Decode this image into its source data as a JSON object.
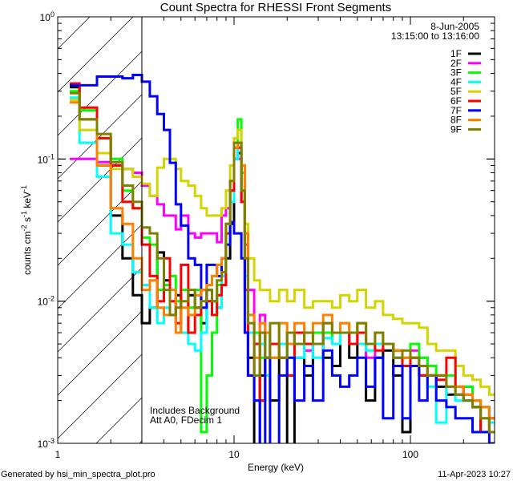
{
  "chart_data": {
    "type": "line",
    "step": true,
    "title": "Count Spectra for RHESSI Front Segments",
    "date": "8-Jun-2005",
    "time_range": "13:15:00 to 13:16:00",
    "xlabel": "Energy (keV)",
    "ylabel_parts": [
      "counts cm",
      "-2",
      " s",
      "-1",
      " keV",
      "-1"
    ],
    "xscale": "log",
    "yscale": "log",
    "xlim": [
      1,
      300
    ],
    "ylim": [
      0.001,
      1
    ],
    "x_ticks": [
      {
        "value": 1,
        "label": "1"
      },
      {
        "value": 10,
        "label": "10"
      },
      {
        "value": 100,
        "label": "100"
      }
    ],
    "y_ticks": [
      {
        "value": 1,
        "base": "10",
        "exp": "0"
      },
      {
        "value": 0.1,
        "base": "10",
        "exp": "-1"
      },
      {
        "value": 0.01,
        "base": "10",
        "exp": "-2"
      },
      {
        "value": 0.001,
        "base": "10",
        "exp": "-3"
      }
    ],
    "hatched_region_keV": [
      1,
      3
    ],
    "annotations": [
      "Includes Background",
      "Att A0, FDecim 1"
    ],
    "legend_position": "top-right",
    "bin_edges_keV": [
      1.17,
      1.33,
      1.67,
      2.0,
      2.33,
      2.67,
      3.0,
      3.33,
      3.67,
      4.0,
      4.33,
      4.67,
      5.0,
      5.5,
      6.0,
      6.5,
      7.0,
      7.5,
      8.0,
      8.5,
      9.0,
      9.5,
      10.0,
      10.5,
      11.0,
      11.5,
      12.0,
      13,
      14,
      15,
      16,
      18,
      20,
      22,
      25,
      28,
      32,
      36,
      40,
      45,
      50,
      56,
      63,
      70,
      80,
      90,
      100,
      112,
      125,
      140,
      160,
      180,
      200,
      225,
      250,
      280,
      300
    ],
    "series": [
      {
        "name": "1F",
        "color": "#000000",
        "values": [
          0.32,
          0.19,
          0.09,
          0.04,
          0.02,
          0.011,
          0.007,
          0.009,
          0.022,
          0.014,
          0.008,
          0.011,
          0.006,
          0.011,
          0.009,
          0.007,
          0.012,
          0.01,
          0.009,
          0.013,
          0.02,
          0.035,
          0.1,
          0.11,
          0.05,
          0.012,
          0.004,
          0.0009,
          0.003,
          0.006,
          0.002,
          0.005,
          0.0009,
          0.004,
          0.003,
          0.005,
          0.004,
          0.0035,
          0.006,
          0.004,
          0.005,
          0.002,
          0.004,
          0.0045,
          0.003,
          0.0012,
          0.004,
          0.003,
          0.003,
          0.0025,
          0.0022,
          0.0022,
          0.002,
          0.0018,
          0.0012,
          0.0015
        ]
      },
      {
        "name": "2F",
        "color": "#ff00ff",
        "values": [
          0.1,
          0.1,
          0.095,
          0.09,
          0.085,
          0.08,
          0.065,
          0.055,
          0.048,
          0.04,
          0.04,
          0.032,
          0.04,
          0.03,
          0.028,
          0.03,
          0.03,
          0.03,
          0.026,
          0.04,
          0.045,
          0.06,
          0.12,
          0.1,
          0.05,
          0.025,
          0.012,
          0.006,
          0.008,
          0.004,
          0.005,
          0.004,
          0.006,
          0.005,
          0.0045,
          0.005,
          0.006,
          0.005,
          0.006,
          0.005,
          0.006,
          0.004,
          0.005,
          0.005,
          0.004,
          0.004,
          0.0045,
          0.004,
          0.003,
          0.003,
          0.0025,
          0.0022,
          0.0025,
          0.002,
          0.0018,
          0.0015
        ]
      },
      {
        "name": "3F",
        "color": "#00ff00",
        "values": [
          0.3,
          0.22,
          0.14,
          0.1,
          0.06,
          0.045,
          0.028,
          0.025,
          0.012,
          0.013,
          0.015,
          0.01,
          0.012,
          0.009,
          0.012,
          0.0012,
          0.003,
          0.006,
          0.013,
          0.015,
          0.03,
          0.06,
          0.13,
          0.19,
          0.08,
          0.02,
          0.008,
          0.006,
          0.004,
          0.006,
          0.004,
          0.005,
          0.004,
          0.006,
          0.005,
          0.006,
          0.006,
          0.005,
          0.007,
          0.006,
          0.007,
          0.005,
          0.006,
          0.005,
          0.0045,
          0.004,
          0.005,
          0.004,
          0.0035,
          0.003,
          0.003,
          0.0025,
          0.0025,
          0.002,
          0.0018,
          0.0015
        ]
      },
      {
        "name": "4F",
        "color": "#00ffff",
        "values": [
          0.27,
          0.13,
          0.075,
          0.03,
          0.025,
          0.016,
          0.013,
          0.009,
          0.007,
          0.009,
          0.012,
          0.007,
          0.006,
          0.005,
          0.0045,
          0.006,
          0.012,
          0.01,
          0.009,
          0.015,
          0.025,
          0.05,
          0.1,
          0.12,
          0.06,
          0.015,
          0.006,
          0.003,
          0.005,
          0.003,
          0.004,
          0.005,
          0.003,
          0.004,
          0.005,
          0.004,
          0.0055,
          0.005,
          0.006,
          0.005,
          0.005,
          0.0045,
          0.005,
          0.005,
          0.004,
          0.0035,
          0.004,
          0.003,
          0.0025,
          0.0014,
          0.0025,
          0.002,
          0.002,
          0.0018,
          0.0015,
          0.0014
        ]
      },
      {
        "name": "5F",
        "color": "#d4d400",
        "values": [
          0.26,
          0.16,
          0.11,
          0.085,
          0.085,
          0.075,
          0.067,
          0.055,
          0.087,
          0.1,
          0.1,
          0.085,
          0.07,
          0.065,
          0.055,
          0.045,
          0.04,
          0.04,
          0.04,
          0.045,
          0.06,
          0.09,
          0.14,
          0.16,
          0.09,
          0.035,
          0.02,
          0.014,
          0.012,
          0.012,
          0.01,
          0.012,
          0.01,
          0.012,
          0.009,
          0.01,
          0.01,
          0.009,
          0.011,
          0.01,
          0.012,
          0.009,
          0.01,
          0.008,
          0.0075,
          0.007,
          0.007,
          0.0065,
          0.005,
          0.0045,
          0.0045,
          0.0035,
          0.003,
          0.0028,
          0.0025,
          0.0022
        ]
      },
      {
        "name": "6F",
        "color": "#ff0000",
        "values": [
          0.34,
          0.23,
          0.14,
          0.09,
          0.05,
          0.045,
          0.025,
          0.015,
          0.01,
          0.02,
          0.01,
          0.007,
          0.018,
          0.006,
          0.008,
          0.012,
          0.01,
          0.008,
          0.011,
          0.013,
          0.03,
          0.06,
          0.12,
          0.12,
          0.05,
          0.012,
          0.003,
          0.005,
          0.002,
          0.004,
          0.005,
          0.004,
          0.003,
          0.006,
          0.005,
          0.005,
          0.007,
          0.006,
          0.006,
          0.005,
          0.006,
          0.005,
          0.0045,
          0.005,
          0.0045,
          0.0035,
          0.004,
          0.003,
          0.003,
          0.0028,
          0.004,
          0.0025,
          0.0022,
          0.0018,
          0.0012,
          0.0015
        ]
      },
      {
        "name": "7F",
        "color": "#0000ff",
        "values": [
          0.33,
          0.33,
          0.38,
          0.38,
          0.37,
          0.39,
          0.35,
          0.276,
          0.207,
          0.16,
          0.094,
          0.048,
          0.034,
          0.02,
          0.018,
          0.009,
          0.018,
          0.018,
          0.015,
          0.02,
          0.025,
          0.036,
          0.03,
          0.03,
          0.02,
          0.006,
          0.003,
          0.002,
          0.0009,
          0.004,
          0.0009,
          0.003,
          0.004,
          0.002,
          0.0035,
          0.002,
          0.0045,
          0.003,
          0.0025,
          0.003,
          0.004,
          0.0025,
          0.004,
          0.0015,
          0.0035,
          0.0015,
          0.0035,
          0.002,
          0.003,
          0.002,
          0.0018,
          0.0015,
          0.0015,
          0.0012,
          0.0012,
          0.001
        ]
      },
      {
        "name": "8F",
        "color": "#ff8000",
        "values": [
          0.25,
          0.19,
          0.09,
          0.045,
          0.035,
          0.02,
          0.012,
          0.014,
          0.009,
          0.008,
          0.012,
          0.006,
          0.009,
          0.008,
          0.011,
          0.012,
          0.013,
          0.015,
          0.018,
          0.02,
          0.035,
          0.07,
          0.12,
          0.13,
          0.09,
          0.03,
          0.008,
          0.004,
          0.007,
          0.006,
          0.004,
          0.007,
          0.005,
          0.007,
          0.006,
          0.007,
          0.008,
          0.006,
          0.007,
          0.006,
          0.007,
          0.005,
          0.006,
          0.005,
          0.0045,
          0.004,
          0.004,
          0.0035,
          0.003,
          0.003,
          0.0025,
          0.0025,
          0.0022,
          0.002,
          0.0018,
          0.0015
        ]
      },
      {
        "name": "9F",
        "color": "#808000",
        "values": [
          0.29,
          0.19,
          0.15,
          0.095,
          0.065,
          0.05,
          0.033,
          0.03,
          0.02,
          0.012,
          0.008,
          0.009,
          0.01,
          0.012,
          0.009,
          0.01,
          0.012,
          0.01,
          0.014,
          0.016,
          0.035,
          0.07,
          0.13,
          0.13,
          0.06,
          0.02,
          0.007,
          0.003,
          0.006,
          0.004,
          0.007,
          0.004,
          0.006,
          0.005,
          0.006,
          0.005,
          0.007,
          0.006,
          0.006,
          0.006,
          0.007,
          0.005,
          0.006,
          0.005,
          0.004,
          0.0045,
          0.004,
          0.0035,
          0.003,
          0.003,
          0.0025,
          0.0022,
          0.002,
          0.0018,
          0.0015,
          0.0012
        ]
      }
    ]
  },
  "footer": {
    "generated_by": "Generated by hsi_min_spectra_plot.pro",
    "timestamp": "11-Apr-2023 10:27"
  }
}
